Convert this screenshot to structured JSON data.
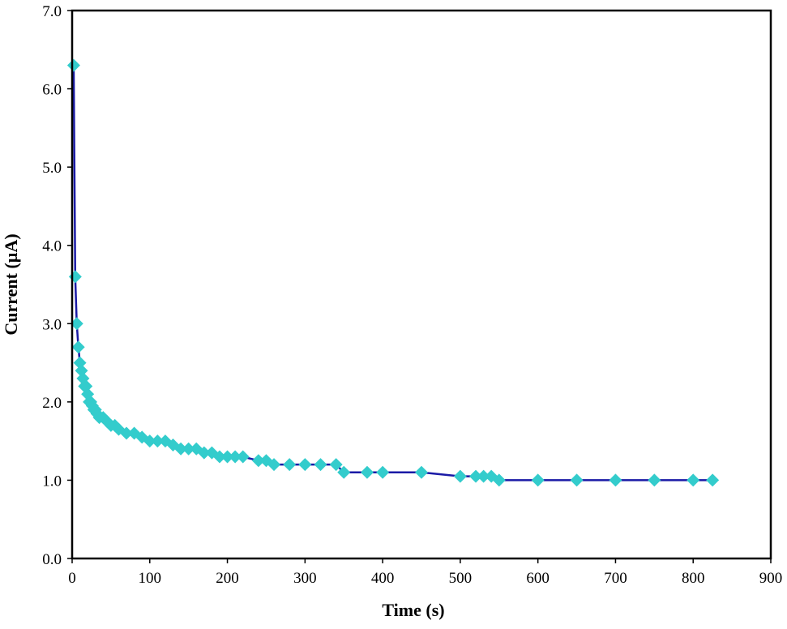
{
  "chart_data": {
    "type": "scatter",
    "title": "",
    "xlabel": "Time (s)",
    "ylabel": "Current (µA)",
    "xlim": [
      0,
      900
    ],
    "ylim": [
      0.0,
      7.0
    ],
    "xticks": [
      0,
      100,
      200,
      300,
      400,
      500,
      600,
      700,
      800,
      900
    ],
    "xtick_labels": [
      "0",
      "100",
      "200",
      "300",
      "400",
      "500",
      "600",
      "700",
      "800",
      "900"
    ],
    "yticks": [
      0.0,
      1.0,
      2.0,
      3.0,
      4.0,
      5.0,
      6.0,
      7.0
    ],
    "ytick_labels": [
      "0.0",
      "1.0",
      "2.0",
      "3.0",
      "4.0",
      "5.0",
      "6.0",
      "7.0"
    ],
    "grid": false,
    "legend": "none",
    "series": [
      {
        "marker": "diamond",
        "line_color": "#1a1aa6",
        "marker_color": "#33cccc",
        "x": [
          2,
          4,
          6,
          8,
          10,
          12,
          14,
          16,
          18,
          20,
          22,
          24,
          26,
          28,
          30,
          32,
          35,
          40,
          45,
          50,
          55,
          60,
          70,
          80,
          90,
          100,
          110,
          120,
          130,
          140,
          150,
          160,
          170,
          180,
          190,
          200,
          210,
          220,
          240,
          250,
          260,
          280,
          300,
          320,
          340,
          350,
          380,
          400,
          450,
          500,
          520,
          530,
          540,
          550,
          600,
          650,
          700,
          750,
          800,
          825
        ],
        "y": [
          6.3,
          3.6,
          3.0,
          2.7,
          2.5,
          2.4,
          2.3,
          2.2,
          2.2,
          2.1,
          2.0,
          2.0,
          1.95,
          1.9,
          1.9,
          1.85,
          1.8,
          1.8,
          1.75,
          1.7,
          1.7,
          1.65,
          1.6,
          1.6,
          1.55,
          1.5,
          1.5,
          1.5,
          1.45,
          1.4,
          1.4,
          1.4,
          1.35,
          1.35,
          1.3,
          1.3,
          1.3,
          1.3,
          1.25,
          1.25,
          1.2,
          1.2,
          1.2,
          1.2,
          1.2,
          1.1,
          1.1,
          1.1,
          1.1,
          1.05,
          1.05,
          1.05,
          1.05,
          1.0,
          1.0,
          1.0,
          1.0,
          1.0,
          1.0,
          1.0
        ]
      }
    ]
  }
}
